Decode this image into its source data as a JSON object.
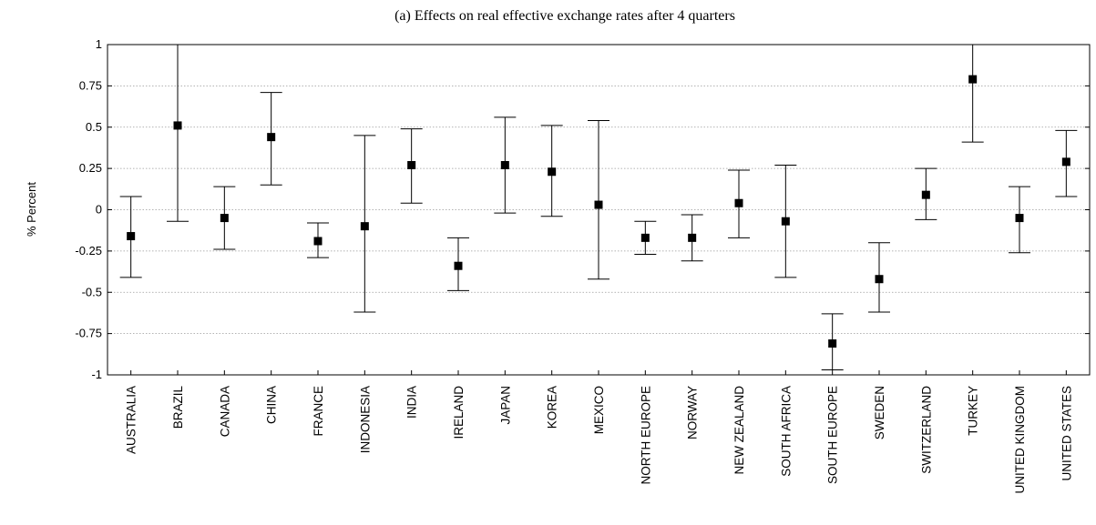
{
  "chart_data": {
    "type": "scatter",
    "title": "(a) Effects on real effective exchange rates after 4 quarters",
    "ylabel": "% Percent",
    "xlabel": "",
    "ylim": [
      -1,
      1
    ],
    "yticks": [
      -1,
      -0.75,
      -0.5,
      -0.25,
      0,
      0.25,
      0.5,
      0.75,
      1
    ],
    "yticklabels": [
      "-1",
      "-0.75",
      "-0.5",
      "-0.25",
      "0",
      "0.25",
      "0.5",
      "0.75",
      "1"
    ],
    "grid": "horizontal-dotted",
    "error_bars": true,
    "categories": [
      "AUSTRALIA",
      "BRAZIL",
      "CANADA",
      "CHINA",
      "FRANCE",
      "INDONESIA",
      "INDIA",
      "IRELAND",
      "JAPAN",
      "KOREA",
      "MEXICO",
      "NORTH EUROPE",
      "NORWAY",
      "NEW ZEALAND",
      "SOUTH AFRICA",
      "SOUTH EUROPE",
      "SWEDEN",
      "SWITZERLAND",
      "TURKEY",
      "UNITED KINGDOM",
      "UNITED STATES"
    ],
    "values": [
      -0.16,
      0.51,
      -0.05,
      0.44,
      -0.19,
      -0.1,
      0.27,
      -0.34,
      0.27,
      0.23,
      0.03,
      -0.17,
      -0.17,
      0.04,
      -0.07,
      -0.81,
      -0.42,
      0.09,
      0.79,
      -0.05,
      0.29
    ],
    "lower": [
      -0.41,
      -0.07,
      -0.24,
      0.15,
      -0.29,
      -0.62,
      0.04,
      -0.49,
      -0.02,
      -0.04,
      -0.42,
      -0.27,
      -0.31,
      -0.17,
      -0.41,
      -0.97,
      -0.62,
      -0.06,
      0.41,
      -0.26,
      0.08
    ],
    "upper": [
      0.08,
      1.0,
      0.14,
      0.71,
      -0.08,
      0.45,
      0.49,
      -0.17,
      0.56,
      0.51,
      0.54,
      -0.07,
      -0.03,
      0.24,
      0.27,
      -0.63,
      -0.2,
      0.25,
      1.0,
      0.14,
      0.48
    ]
  }
}
